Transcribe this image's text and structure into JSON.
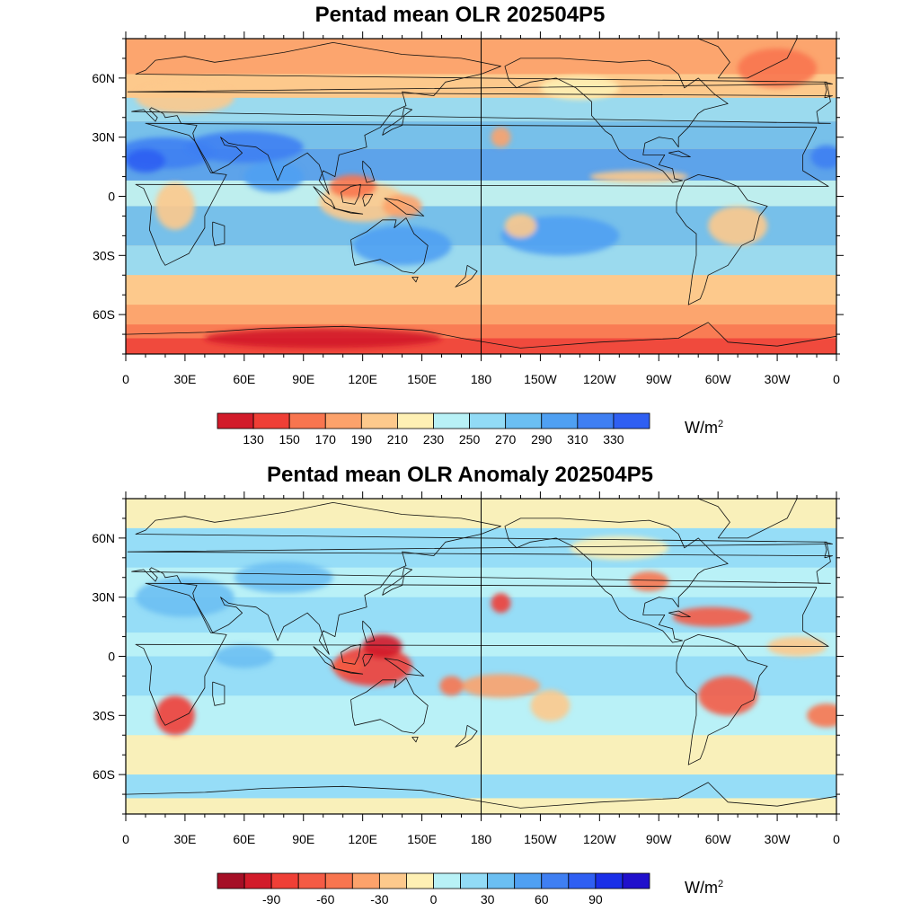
{
  "panels": [
    {
      "id": "mean",
      "title": "Pentad mean OLR 202504P5",
      "lat_labels": [
        "60N",
        "30N",
        "0",
        "30S",
        "60S"
      ],
      "lon_labels": [
        "0",
        "30E",
        "60E",
        "90E",
        "120E",
        "150E",
        "180",
        "150W",
        "120W",
        "90W",
        "60W",
        "30W",
        "0"
      ],
      "colorbar": {
        "colors": [
          "#d21b2a",
          "#ef3f36",
          "#f8754f",
          "#fca26b",
          "#fdc98c",
          "#fef0b4",
          "#b8f1f6",
          "#92dbf6",
          "#6bbff2",
          "#4fa0f2",
          "#3f7ff2",
          "#2f5ff2"
        ],
        "labels": [
          "130",
          "150",
          "170",
          "190",
          "210",
          "230",
          "250",
          "270",
          "290",
          "310",
          "330"
        ],
        "unit": "W/m",
        "unit_exp": "2"
      }
    },
    {
      "id": "anom",
      "title": "Pentad mean OLR Anomaly 202504P5",
      "lat_labels": [
        "60N",
        "30N",
        "0",
        "30S",
        "60S"
      ],
      "lon_labels": [
        "0",
        "30E",
        "60E",
        "90E",
        "120E",
        "150E",
        "180",
        "150W",
        "120W",
        "90W",
        "60W",
        "30W",
        "0"
      ],
      "colorbar": {
        "colors": [
          "#a50f26",
          "#d21b2a",
          "#ef3f36",
          "#f45b45",
          "#f8754f",
          "#fca26b",
          "#fdc98c",
          "#fef0b4",
          "#b8f1f6",
          "#92dbf6",
          "#6bbff2",
          "#4fa0f2",
          "#3f7ff2",
          "#2f5ff2",
          "#1a2fe8",
          "#2010cc"
        ],
        "labels": [
          "-90",
          "-60",
          "-30",
          "0",
          "30",
          "60",
          "90"
        ],
        "unit": "W/m",
        "unit_exp": "2"
      }
    }
  ]
}
